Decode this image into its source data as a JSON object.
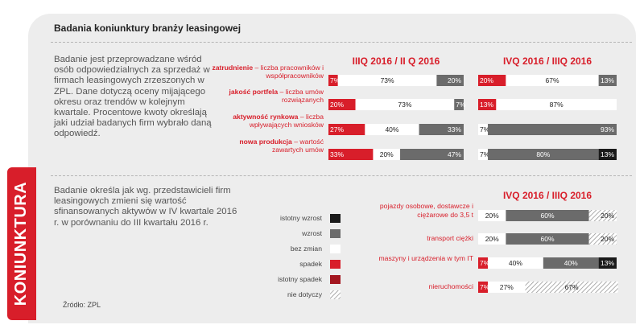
{
  "title": "Badania koniunktury branży leasingowej",
  "side_label": "KONIUNKTURA",
  "description_1": "Badanie jest przeprowadzane wśród osób odpowiedzialnych za sprzedaż w firmach leasingowych zrzeszonych w ZPL. Dane dotyczą oceny mijającego okresu oraz trendów w kolejnym kwartale. Procentowe kwoty określają jaki udział  badanych firm wybrało daną odpowiedź.",
  "description_2": "Badanie określa jak wg. przedstawicieli firm leasingowych zmieni się wartość sfinansowanych aktywów w IV kwartale 2016 r. w porównaniu do III kwartału 2016 r.",
  "source": "Źródło: ZPL",
  "legend": [
    {
      "label": "istotny wzrost",
      "color": "#1a1a1a"
    },
    {
      "label": "wzrost",
      "color": "#6b6b6b"
    },
    {
      "label": "bez zmian",
      "color": "#ffffff"
    },
    {
      "label": "spadek",
      "color": "#d81e2a"
    },
    {
      "label": "istotny spadek",
      "color": "#a3161f"
    },
    {
      "label": "nie dotyczy",
      "color": "hatch"
    }
  ],
  "colors": {
    "spadek": "#d81e2a",
    "bez_zmian": "#ffffff",
    "wzrost": "#6b6b6b",
    "istotny_wzrost": "#1a1a1a",
    "nie_dotyczy": "hatch",
    "accent": "#d81e2a"
  },
  "chart_data": [
    {
      "type": "bar",
      "stacked": true,
      "orientation": "horizontal",
      "title": "IIIQ 2016 / II Q 2016",
      "categories": [
        {
          "bold": "zatrudnienie",
          "rest": " – liczba pracowników i współpracowników"
        },
        {
          "bold": "jakość portfela",
          "rest": " – liczba umów rozwiązanych"
        },
        {
          "bold": "aktywność rynkowa",
          "rest": " – liczba wpływających wniosków"
        },
        {
          "bold": "nowa produkcja",
          "rest": " – wartość zawartych umów"
        }
      ],
      "series": [
        {
          "name": "spadek",
          "values": [
            7,
            20,
            27,
            33
          ]
        },
        {
          "name": "bez zmian",
          "values": [
            73,
            73,
            40,
            20
          ]
        },
        {
          "name": "wzrost",
          "values": [
            20,
            7,
            33,
            47
          ]
        }
      ]
    },
    {
      "type": "bar",
      "stacked": true,
      "orientation": "horizontal",
      "title": "IVQ 2016 / IIIQ 2016",
      "categories": [
        {
          "bold": "zatrudnienie",
          "rest": " – liczba pracowników i współpracowników"
        },
        {
          "bold": "jakość portfela",
          "rest": " – liczba umów rozwiązanych"
        },
        {
          "bold": "aktywność rynkowa",
          "rest": " – liczba wpływających wniosków"
        },
        {
          "bold": "nowa produkcja",
          "rest": " – wartość zawartych umów"
        }
      ],
      "series": [
        {
          "name": "spadek",
          "values": [
            20,
            13,
            0,
            0
          ]
        },
        {
          "name": "bez zmian",
          "values": [
            67,
            87,
            7,
            7
          ]
        },
        {
          "name": "wzrost",
          "values": [
            13,
            0,
            93,
            80
          ]
        },
        {
          "name": "istotny wzrost",
          "values": [
            0,
            0,
            0,
            13
          ]
        }
      ]
    },
    {
      "type": "bar",
      "stacked": true,
      "orientation": "horizontal",
      "title": "IVQ 2016 / IIIQ 2016",
      "categories": [
        "pojazdy osobowe, dostawcze i ciężarowe do 3,5 t",
        "transport ciężki",
        "maszyny i urządzenia w tym IT",
        "nieruchomości"
      ],
      "series": [
        {
          "name": "spadek",
          "values": [
            0,
            0,
            7,
            7
          ]
        },
        {
          "name": "bez zmian",
          "values": [
            20,
            20,
            40,
            27
          ]
        },
        {
          "name": "wzrost",
          "values": [
            60,
            60,
            40,
            0
          ]
        },
        {
          "name": "istotny wzrost",
          "values": [
            0,
            0,
            13,
            0
          ]
        },
        {
          "name": "nie dotyczy",
          "values": [
            20,
            20,
            0,
            67
          ]
        }
      ]
    }
  ]
}
